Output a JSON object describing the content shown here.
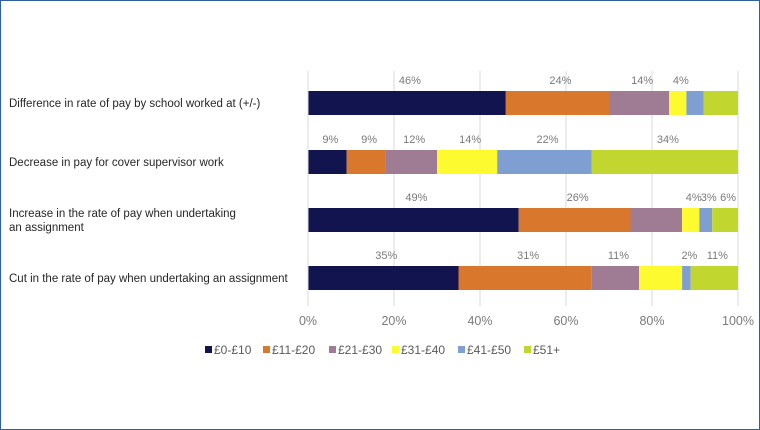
{
  "chart_data": {
    "type": "bar",
    "orientation": "horizontal",
    "stacked": "percent",
    "title": "",
    "xlabel": "",
    "ylabel": "",
    "xlim": [
      0,
      100
    ],
    "x_ticks": [
      "0%",
      "20%",
      "40%",
      "60%",
      "80%",
      "100%"
    ],
    "grid": true,
    "legend_position": "bottom",
    "categories": [
      {
        "label": "Difference in rate of pay by school worked at (+/-)",
        "lines": [
          "Difference in rate of pay by school worked at (+/-)"
        ]
      },
      {
        "label": "Decrease in pay for cover supervisor work",
        "lines": [
          "Decrease in pay for cover supervisor work"
        ]
      },
      {
        "label": "Increase in the rate of pay when undertaking an assignment",
        "lines": [
          "Increase in the rate of pay when undertaking",
          "an assignment"
        ]
      },
      {
        "label": "Cut in the rate of pay when undertaking an assignment",
        "lines": [
          "Cut in the rate of pay when undertaking an assignment"
        ]
      }
    ],
    "series": [
      {
        "name": "£0-£10",
        "color": "#12144f",
        "values": [
          46,
          9,
          49,
          35
        ],
        "labels": [
          "46%",
          "9%",
          "49%",
          "35%"
        ]
      },
      {
        "name": "£11-£20",
        "color": "#d9782c",
        "values": [
          24,
          9,
          26,
          31
        ],
        "labels": [
          "24%",
          "9%",
          "26%",
          "31%"
        ]
      },
      {
        "name": "£21-£30",
        "color": "#a07b94",
        "values": [
          14,
          12,
          12,
          11
        ],
        "labels": [
          "14%",
          "12%",
          null,
          "11%"
        ]
      },
      {
        "name": "£31-£40",
        "color": "#fdfb30",
        "values": [
          4,
          14,
          4,
          10
        ],
        "labels": [
          "4%",
          "14%",
          "4%",
          null
        ]
      },
      {
        "name": "£41-£50",
        "color": "#7f9fd3",
        "values": [
          4,
          22,
          3,
          2
        ],
        "labels": [
          null,
          "22%",
          "3%",
          "2%"
        ]
      },
      {
        "name": "£51+",
        "color": "#c1d72f",
        "values": [
          8,
          34,
          6,
          11
        ],
        "labels": [
          null,
          "34%",
          "6%",
          "11%"
        ]
      }
    ]
  }
}
